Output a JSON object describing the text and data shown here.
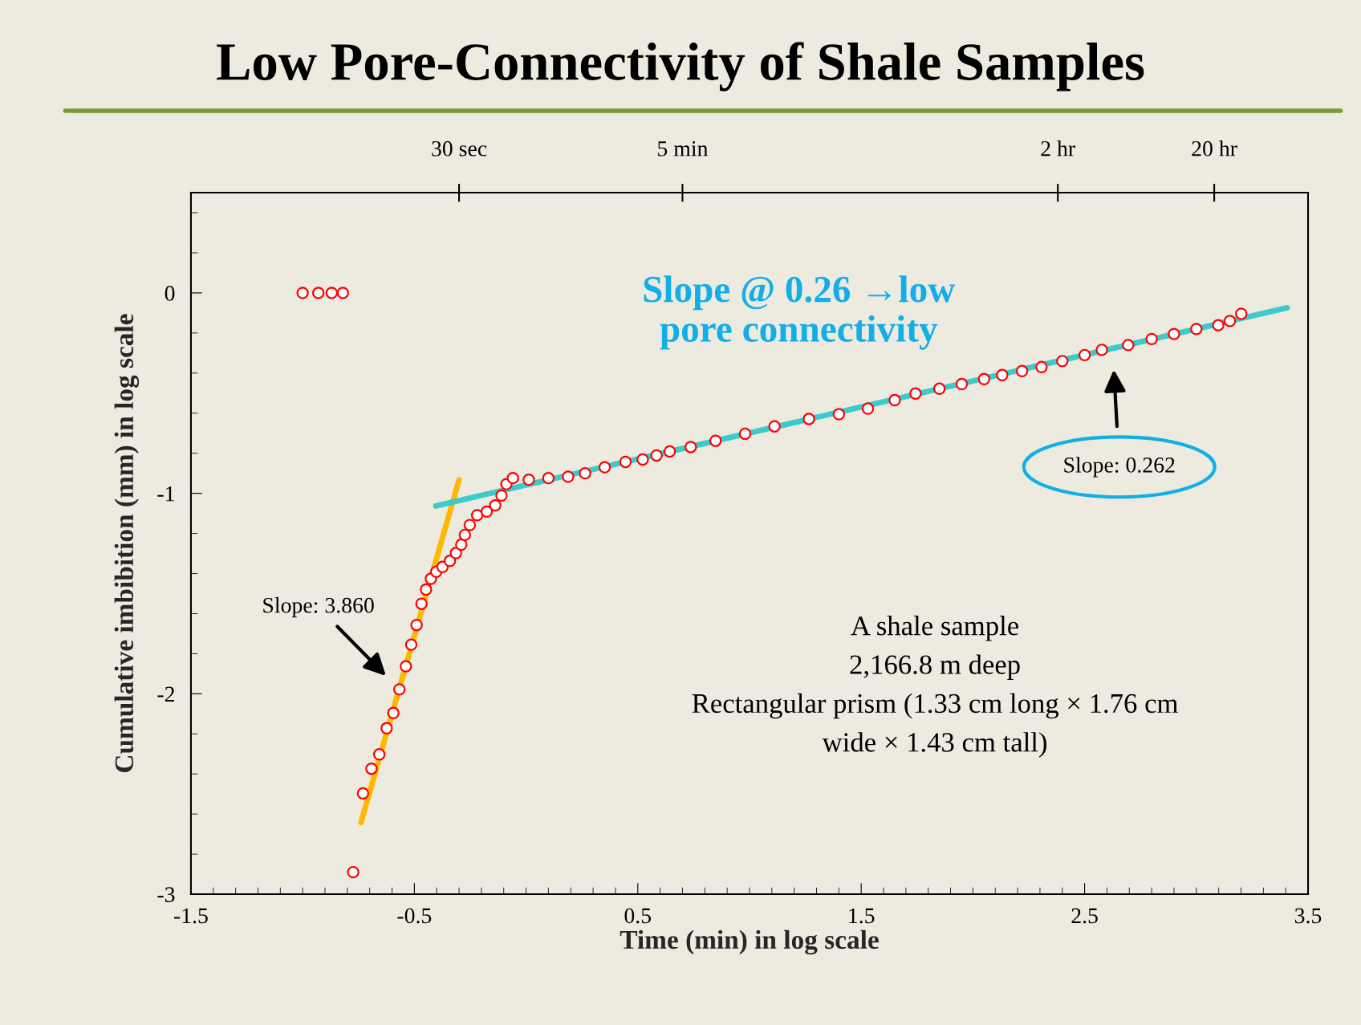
{
  "chart_data": {
    "type": "scatter",
    "title": "Low Pore-Connectivity of Shale Samples",
    "xlabel": "Time (min) in log scale",
    "ylabel": "Cumulative imbibition (mm) in log scale",
    "xlim": [
      -1.5,
      3.5
    ],
    "xticks": [
      -1.5,
      -0.5,
      0.5,
      1.5,
      2.5,
      3.5
    ],
    "ylim": [
      -3,
      0.5
    ],
    "yticks": [
      -3,
      -2,
      -1,
      0
    ],
    "series": [
      {
        "color": "#ff0000",
        "marker": "circle",
        "x": [
          -1.0,
          -0.93,
          -0.87,
          -0.82,
          -0.774,
          -0.73,
          -0.692,
          -0.657,
          -0.624,
          -0.594,
          -0.567,
          -0.538,
          -0.514,
          -0.49,
          -0.468,
          -0.448,
          -0.426,
          -0.402,
          -0.374,
          -0.341,
          -0.314,
          -0.29,
          -0.274,
          -0.252,
          -0.219,
          -0.176,
          -0.138,
          -0.11,
          -0.088,
          -0.059,
          0.012,
          0.1,
          0.188,
          0.264,
          0.352,
          0.445,
          0.522,
          0.584,
          0.643,
          0.737,
          0.848,
          0.98,
          1.112,
          1.266,
          1.4,
          1.53,
          1.65,
          1.743,
          1.85,
          1.95,
          2.05,
          2.131,
          2.22,
          2.307,
          2.4,
          2.5,
          2.577,
          2.695,
          2.8,
          2.9,
          3.0,
          3.098,
          3.15,
          3.201
        ],
        "values": [
          0,
          0,
          0,
          0,
          -2.89,
          -2.497,
          -2.374,
          -2.302,
          -2.172,
          -2.096,
          -1.978,
          -1.863,
          -1.755,
          -1.657,
          -1.551,
          -1.48,
          -1.426,
          -1.391,
          -1.367,
          -1.337,
          -1.298,
          -1.256,
          -1.207,
          -1.158,
          -1.109,
          -1.091,
          -1.06,
          -1.011,
          -0.954,
          -0.924,
          -0.932,
          -0.924,
          -0.917,
          -0.9,
          -0.87,
          -0.843,
          -0.831,
          -0.811,
          -0.791,
          -0.769,
          -0.738,
          -0.703,
          -0.666,
          -0.629,
          -0.605,
          -0.577,
          -0.535,
          -0.502,
          -0.478,
          -0.455,
          -0.43,
          -0.41,
          -0.39,
          -0.37,
          -0.34,
          -0.31,
          -0.284,
          -0.26,
          -0.23,
          -0.205,
          -0.18,
          -0.161,
          -0.14,
          -0.104
        ]
      },
      {
        "type": "line",
        "color": "#ffb800",
        "x": [
          -0.739,
          -0.3
        ],
        "values": [
          -2.642,
          -0.933
        ]
      },
      {
        "type": "line",
        "color": "#3ccaca",
        "x": [
          -0.404,
          3.407
        ],
        "values": [
          -1.063,
          -0.074
        ]
      }
    ],
    "annotations": [
      "Slope: 3.860",
      "Slope: 0.262",
      "Slope @ 0.26 →low\npore connectivity",
      "A shale sample\n2,166.8 m deep\nRectangular prism (1.33 cm long × 1.76 cm\nwide × 1.43 cm tall)",
      "30 sec",
      "5 min",
      "2 hr",
      "20 hr"
    ]
  }
}
